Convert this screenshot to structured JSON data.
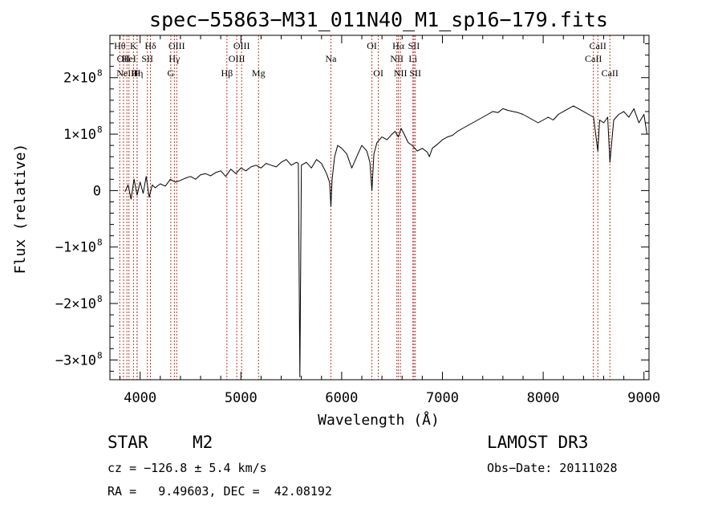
{
  "chart_data": {
    "type": "line",
    "title": "spec−55863−M31_011N40_M1_sp16−179.fits",
    "xlabel": "Wavelength (Å)",
    "ylabel": "Flux (relative)",
    "xlim": [
      3700,
      9050
    ],
    "ylim": [
      -335000000.0,
      275000000.0
    ],
    "x_ticks": [
      {
        "value": 4000,
        "label": "4000"
      },
      {
        "value": 5000,
        "label": "5000"
      },
      {
        "value": 6000,
        "label": "6000"
      },
      {
        "value": 7000,
        "label": "7000"
      },
      {
        "value": 8000,
        "label": "8000"
      },
      {
        "value": 9000,
        "label": "9000"
      }
    ],
    "y_ticks": [
      {
        "value": 200000000,
        "label": "2×10",
        "exp": "8",
        "neg": false
      },
      {
        "value": 100000000,
        "label": "1×10",
        "exp": "8",
        "neg": false
      },
      {
        "value": 0,
        "label": "0",
        "exp": "",
        "neg": false
      },
      {
        "value": -100000000,
        "label": "−1×10",
        "exp": "8",
        "neg": true
      },
      {
        "value": -200000000,
        "label": "−2×10",
        "exp": "8",
        "neg": true
      },
      {
        "value": -300000000,
        "label": "−3×10",
        "exp": "8",
        "neg": true
      }
    ],
    "series": [
      {
        "name": "spectrum",
        "x": [
          3850,
          3880,
          3910,
          3940,
          3970,
          4000,
          4030,
          4060,
          4090,
          4120,
          4150,
          4200,
          4250,
          4300,
          4350,
          4400,
          4450,
          4500,
          4550,
          4600,
          4650,
          4700,
          4750,
          4800,
          4850,
          4900,
          4950,
          5000,
          5050,
          5100,
          5150,
          5200,
          5250,
          5300,
          5350,
          5400,
          5450,
          5500,
          5550,
          5570,
          5585,
          5600,
          5650,
          5700,
          5750,
          5800,
          5850,
          5880,
          5893,
          5905,
          5930,
          5960,
          6000,
          6050,
          6100,
          6150,
          6200,
          6250,
          6280,
          6300,
          6320,
          6350,
          6400,
          6450,
          6500,
          6530,
          6563,
          6590,
          6620,
          6660,
          6700,
          6750,
          6800,
          6850,
          6870,
          6900,
          6950,
          7000,
          7050,
          7100,
          7150,
          7200,
          7250,
          7300,
          7350,
          7400,
          7450,
          7500,
          7550,
          7600,
          7650,
          7700,
          7750,
          7800,
          7850,
          7900,
          7950,
          8000,
          8050,
          8100,
          8150,
          8200,
          8250,
          8300,
          8350,
          8400,
          8450,
          8500,
          8542,
          8560,
          8600,
          8640,
          8662,
          8700,
          8750,
          8800,
          8850,
          8900,
          8950,
          9000,
          9030
        ],
        "y": [
          -2000000,
          10000000,
          -15000000,
          20000000,
          -8000000,
          15000000,
          -5000000,
          25000000,
          -12000000,
          10000000,
          5000000,
          12000000,
          8000000,
          20000000,
          15000000,
          18000000,
          22000000,
          25000000,
          20000000,
          28000000,
          30000000,
          26000000,
          32000000,
          35000000,
          25000000,
          38000000,
          30000000,
          40000000,
          35000000,
          42000000,
          45000000,
          40000000,
          48000000,
          45000000,
          42000000,
          50000000,
          55000000,
          45000000,
          50000000,
          48000000,
          -330000000,
          45000000,
          50000000,
          40000000,
          55000000,
          48000000,
          30000000,
          15000000,
          -28000000,
          20000000,
          60000000,
          80000000,
          75000000,
          65000000,
          40000000,
          60000000,
          80000000,
          70000000,
          50000000,
          0,
          65000000,
          85000000,
          95000000,
          90000000,
          100000000,
          105000000,
          95000000,
          110000000,
          100000000,
          85000000,
          80000000,
          70000000,
          75000000,
          68000000,
          60000000,
          75000000,
          82000000,
          90000000,
          95000000,
          98000000,
          105000000,
          110000000,
          115000000,
          120000000,
          125000000,
          130000000,
          135000000,
          140000000,
          138000000,
          145000000,
          142000000,
          140000000,
          138000000,
          135000000,
          130000000,
          125000000,
          120000000,
          125000000,
          130000000,
          125000000,
          135000000,
          140000000,
          145000000,
          150000000,
          145000000,
          140000000,
          135000000,
          130000000,
          70000000,
          125000000,
          120000000,
          130000000,
          50000000,
          125000000,
          135000000,
          140000000,
          130000000,
          145000000,
          120000000,
          135000000,
          100000000
        ]
      }
    ],
    "lines": [
      {
        "wave": 3798,
        "label": "Hθ",
        "row": 1
      },
      {
        "wave": 3835,
        "label": "OII",
        "row": 2
      },
      {
        "wave": 3869,
        "label": "NeIII",
        "row": 3
      },
      {
        "wave": 3889,
        "label": "HeI",
        "row": 2
      },
      {
        "wave": 3934,
        "label": "K",
        "row": 1
      },
      {
        "wave": 3970,
        "label": "H",
        "row": 3
      },
      {
        "wave": 3970,
        "label": "Hη",
        "row": 3
      },
      {
        "wave": 4072,
        "label": "SII",
        "row": 2
      },
      {
        "wave": 4102,
        "label": "Hδ",
        "row": 1
      },
      {
        "wave": 4304,
        "label": "G",
        "row": 3
      },
      {
        "wave": 4340,
        "label": "Hγ",
        "row": 2
      },
      {
        "wave": 4363,
        "label": "OIII",
        "row": 1
      },
      {
        "wave": 4861,
        "label": "Hβ",
        "row": 3
      },
      {
        "wave": 4959,
        "label": "OIII",
        "row": 2
      },
      {
        "wave": 5007,
        "label": "OIII",
        "row": 1
      },
      {
        "wave": 5175,
        "label": "Mg",
        "row": 3
      },
      {
        "wave": 5893,
        "label": "Na",
        "row": 2
      },
      {
        "wave": 6300,
        "label": "OI",
        "row": 1
      },
      {
        "wave": 6364,
        "label": "OI",
        "row": 3
      },
      {
        "wave": 6548,
        "label": "NII",
        "row": 2
      },
      {
        "wave": 6563,
        "label": "Hα",
        "row": 1
      },
      {
        "wave": 6583,
        "label": "NII",
        "row": 3
      },
      {
        "wave": 6707,
        "label": "Li",
        "row": 2
      },
      {
        "wave": 6717,
        "label": "SII",
        "row": 1
      },
      {
        "wave": 6731,
        "label": "SII",
        "row": 3
      },
      {
        "wave": 8498,
        "label": "CaII",
        "row": 2
      },
      {
        "wave": 8542,
        "label": "CaII",
        "row": 1
      },
      {
        "wave": 8662,
        "label": "CaII",
        "row": 3
      }
    ]
  },
  "info": {
    "class": "STAR",
    "subclass": "M2",
    "survey": "LAMOST DR3",
    "cz": "cz = −126.8 ± 5.4 km/s",
    "obs_date": "Obs−Date: 20111028",
    "radec": "RA =   9.49603, DEC =  42.08192"
  }
}
